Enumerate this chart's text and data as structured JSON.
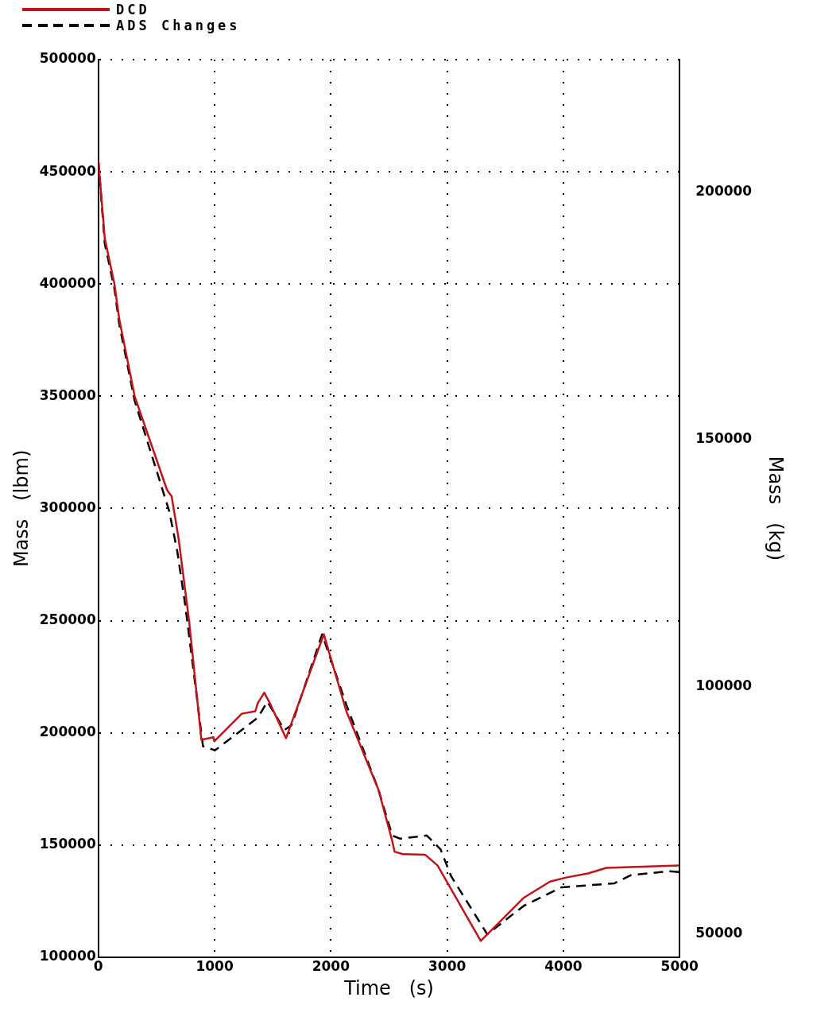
{
  "chart_data": {
    "type": "line",
    "xlabel": "Time   (s)",
    "ylabel": "Mass   (lbm)",
    "y2label": "Mass   (kg)",
    "xlim": [
      0,
      5000
    ],
    "xticks": [
      0,
      1000,
      2000,
      3000,
      4000,
      5000
    ],
    "ylim": [
      100000,
      500000
    ],
    "yticks": [
      100000,
      150000,
      200000,
      250000,
      300000,
      350000,
      400000,
      450000,
      500000
    ],
    "y2lim": [
      45359,
      226796
    ],
    "y2ticks": [
      50000,
      100000,
      150000,
      200000
    ],
    "grid": true,
    "legend": "top left",
    "marker": "none",
    "series": [
      {
        "name": "DCD",
        "color": "#c0141c",
        "line_style": "solid",
        "x": [
          0,
          55,
          138,
          180,
          312,
          590,
          630,
          690,
          780,
          886,
          990,
          997,
          1233,
          1350,
          1371,
          1427,
          1475,
          1614,
          1939,
          2133,
          2410,
          2528,
          2548,
          2618,
          2812,
          2917,
          3289,
          3657,
          3885,
          4024,
          4211,
          4370,
          4993
        ],
        "values": [
          455000,
          420400,
          400000,
          384300,
          350000,
          308300,
          305400,
          286600,
          250000,
          196900,
          198000,
          196200,
          208500,
          209600,
          213200,
          217900,
          213200,
          197600,
          243900,
          209600,
          174500,
          151700,
          147000,
          145900,
          145600,
          140900,
          107200,
          126400,
          133700,
          135500,
          137300,
          139800,
          140900
        ]
      },
      {
        "name": "ADS Changes",
        "color": "#000000",
        "line_style": "dashed",
        "x": [
          0,
          55,
          138,
          180,
          312,
          609,
          679,
          748,
          900,
          1004,
          1371,
          1454,
          1600,
          1662,
          1925,
          2133,
          2410,
          2528,
          2597,
          2825,
          2943,
          3033,
          3345,
          3657,
          3982,
          4439,
          4578,
          4903,
          4993
        ],
        "values": [
          455000,
          418000,
          398000,
          382000,
          348000,
          298900,
          280800,
          256600,
          194000,
          192200,
          206700,
          213900,
          201200,
          203400,
          243900,
          212500,
          174500,
          154200,
          152800,
          154200,
          148100,
          136200,
          110200,
          122800,
          131100,
          132900,
          136500,
          138300,
          137900
        ]
      }
    ]
  }
}
